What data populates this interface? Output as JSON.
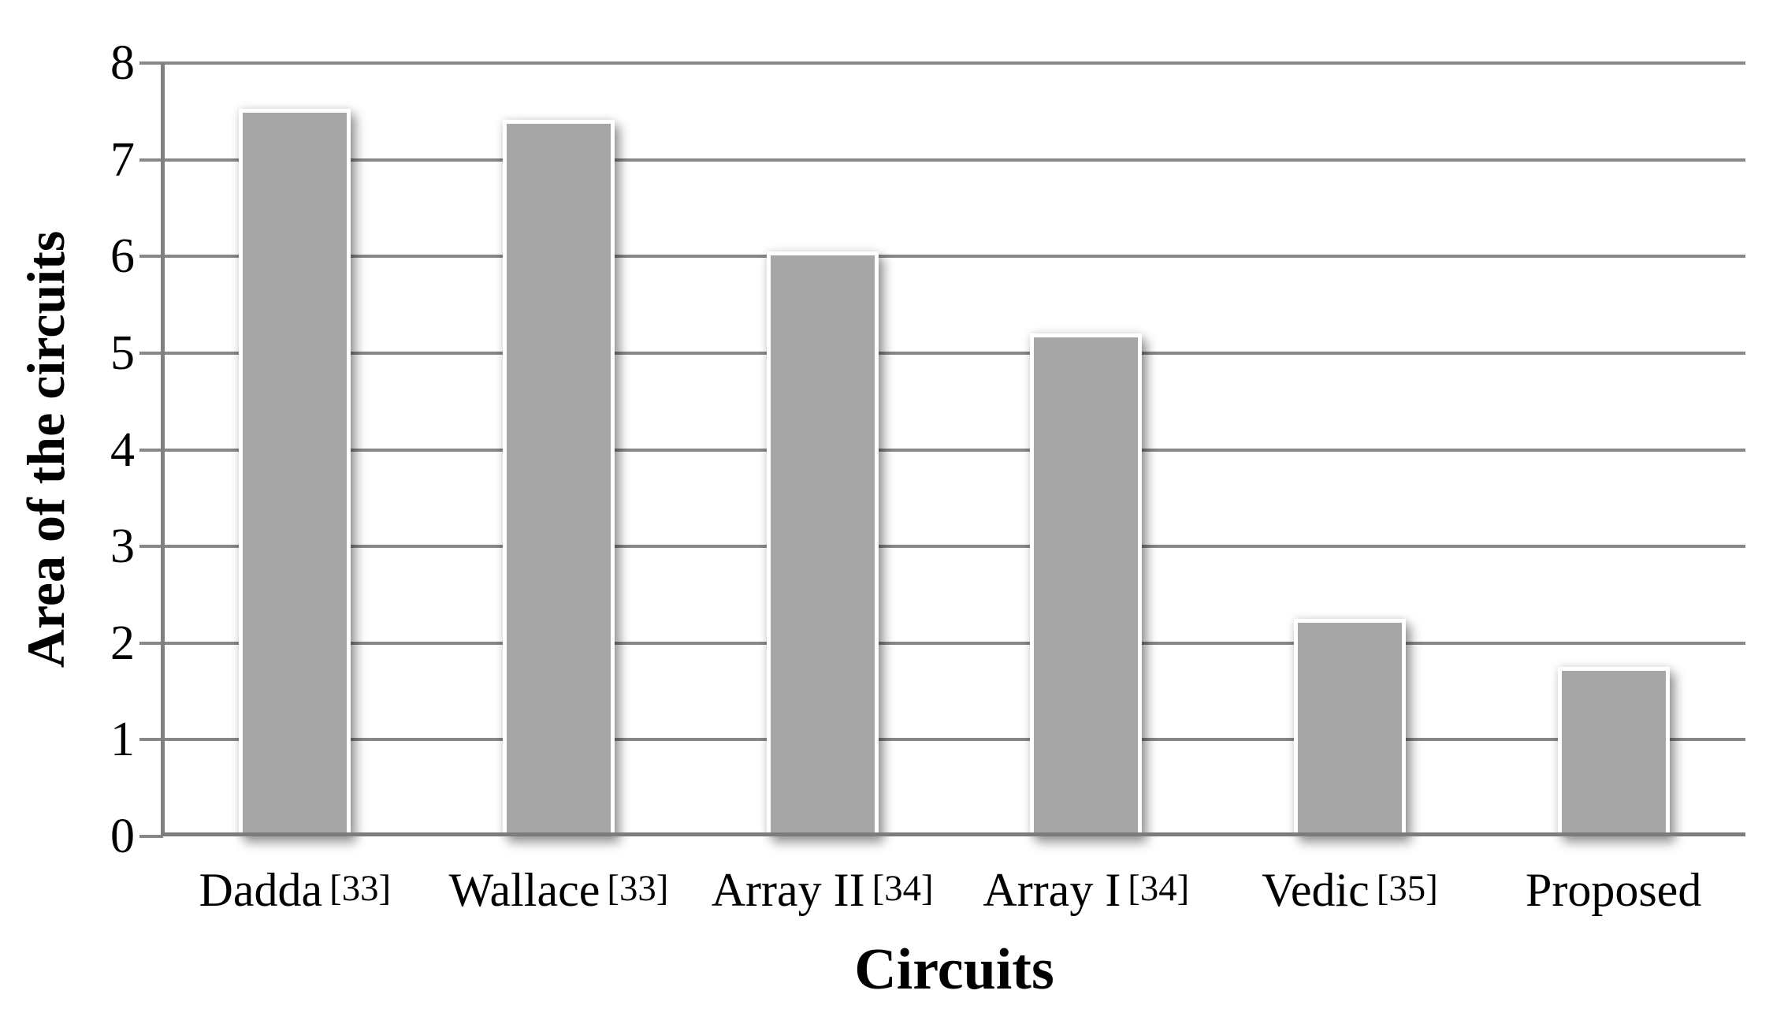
{
  "chart_data": {
    "type": "bar",
    "title": "",
    "xlabel": "Circuits",
    "ylabel": "Area of the circuits",
    "categories": [
      "Dadda",
      "Wallace",
      "Array II",
      "Array I",
      "Vedic",
      "Proposed"
    ],
    "category_refs": [
      "[33]",
      "[33]",
      "[34]",
      "[34]",
      "[35]",
      ""
    ],
    "values": [
      7.49,
      7.37,
      6.01,
      5.16,
      2.21,
      1.71
    ],
    "ylim": [
      0,
      8
    ],
    "yticks": [
      0,
      1,
      2,
      3,
      4,
      5,
      6,
      7,
      8
    ],
    "grid": "horizontal",
    "legend_position": "none",
    "bar_color": "#a6a6a6",
    "bar_outline_color": "#ffffff",
    "grid_color": "#878787",
    "axis_color": "#7f7f7f",
    "text_color": "#000000"
  }
}
